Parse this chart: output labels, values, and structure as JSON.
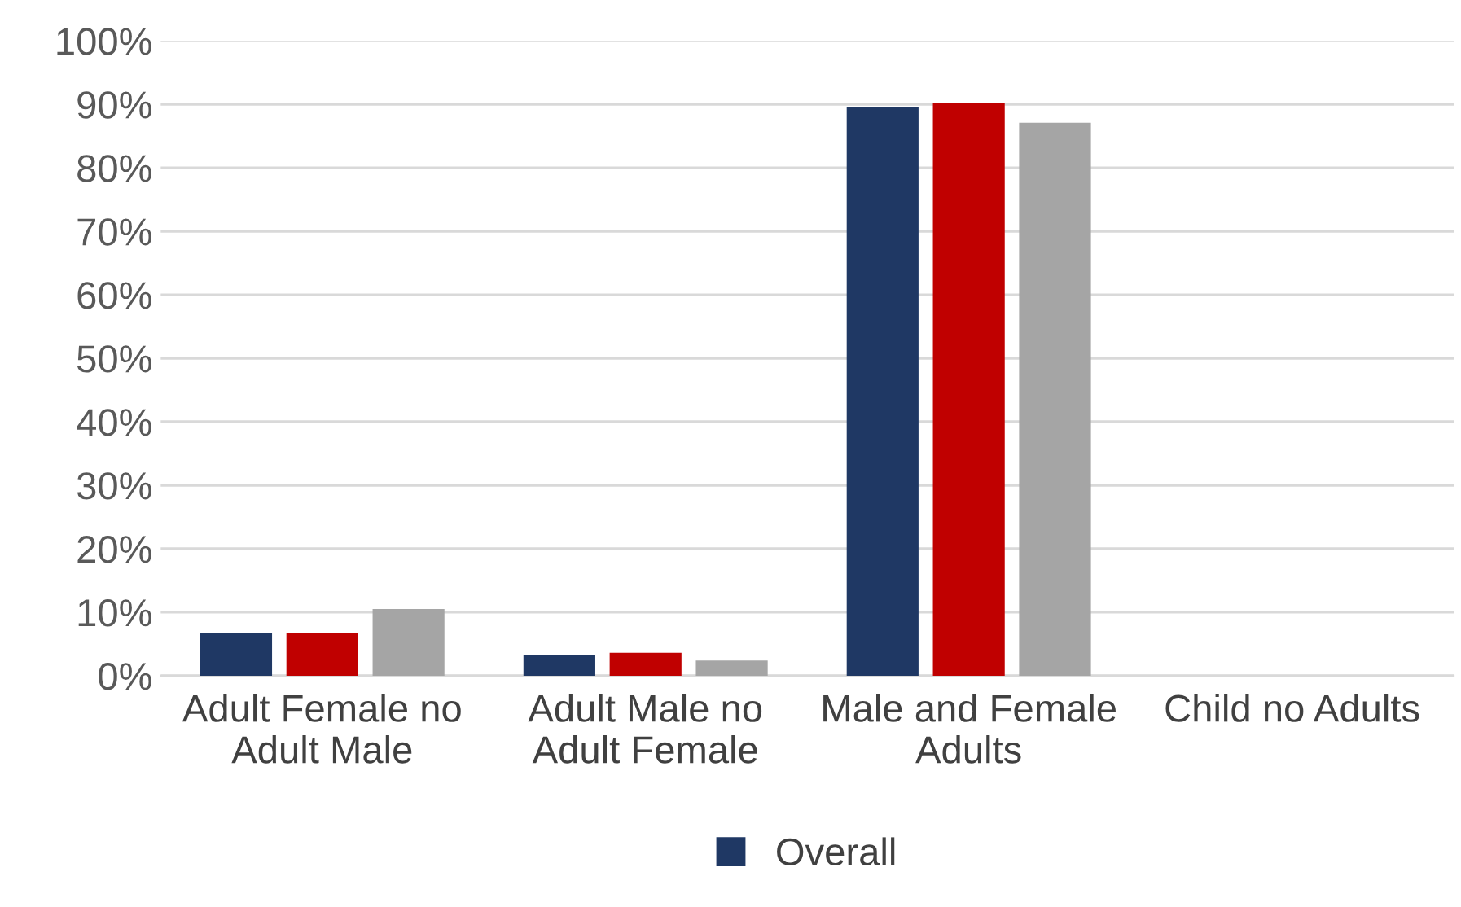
{
  "chart_data": {
    "type": "bar",
    "categories": [
      "Adult Female no\nAdult Male",
      "Adult Male no\nAdult Female",
      "Male and Female\nAdults",
      "Child no Adults"
    ],
    "series": [
      {
        "name": "Overall",
        "color": "#1f3864",
        "values": [
          6.7,
          3.2,
          89.6,
          0
        ]
      },
      {
        "color": "#c00000",
        "values": [
          6.7,
          3.6,
          90.2,
          0
        ]
      },
      {
        "color": "#a5a5a5",
        "values": [
          10.5,
          2.4,
          87.1,
          0
        ]
      }
    ],
    "ylim": [
      0,
      100
    ],
    "yticks": [
      {
        "value": 0,
        "label": "0%"
      },
      {
        "value": 10,
        "label": "10%"
      },
      {
        "value": 20,
        "label": "20%"
      },
      {
        "value": 30,
        "label": "30%"
      },
      {
        "value": 40,
        "label": "40%"
      },
      {
        "value": 50,
        "label": "50%"
      },
      {
        "value": 60,
        "label": "60%"
      },
      {
        "value": 70,
        "label": "70%"
      },
      {
        "value": 80,
        "label": "80%"
      },
      {
        "value": 90,
        "label": "90%"
      },
      {
        "value": 100,
        "label": "100%"
      }
    ],
    "grid": "y",
    "legend": "bottom"
  }
}
